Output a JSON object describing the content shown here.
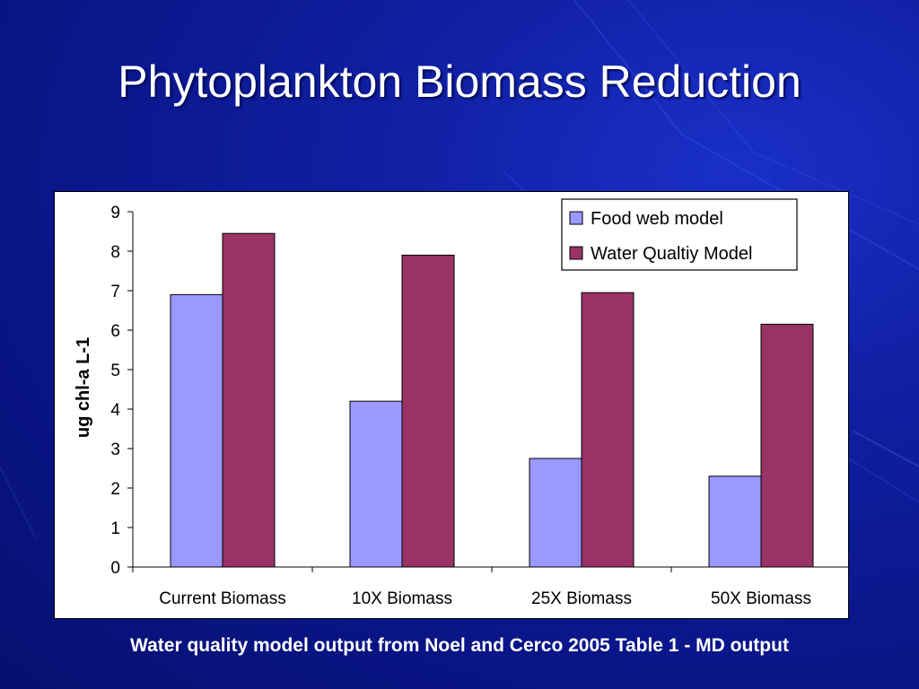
{
  "slide": {
    "title": "Phytoplankton Biomass Reduction",
    "caption": "Water quality model output from Noel and Cerco 2005 Table 1 - MD output"
  },
  "colors": {
    "background": "#0f1fa0",
    "food_web": "#9999ff",
    "water_quality": "#993366"
  },
  "chart_data": {
    "type": "bar",
    "categories": [
      "Current Biomass",
      "10X Biomass",
      "25X Biomass",
      "50X Biomass"
    ],
    "series": [
      {
        "name": "Food web model",
        "values": [
          6.9,
          4.2,
          2.75,
          2.3
        ]
      },
      {
        "name": "Water Qualtiy Model",
        "values": [
          8.45,
          7.9,
          6.95,
          6.15
        ]
      }
    ],
    "ylabel": "ug chl-a L-1",
    "ylim": [
      0,
      9
    ],
    "yticks": [
      "0",
      "1",
      "2",
      "3",
      "4",
      "5",
      "6",
      "7",
      "8",
      "9"
    ],
    "grid": false,
    "legend_position": "top-right"
  }
}
